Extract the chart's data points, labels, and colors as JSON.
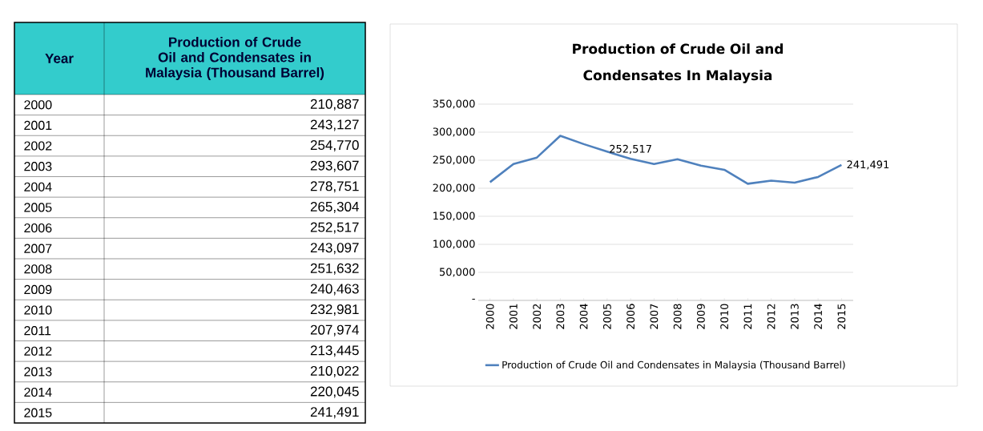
{
  "chart_data": {
    "type": "line",
    "title": "Production of Crude Oil and Condensates In Malaysia",
    "categories": [
      "2000",
      "2001",
      "2002",
      "2003",
      "2004",
      "2005",
      "2006",
      "2007",
      "2008",
      "2009",
      "2010",
      "2011",
      "2012",
      "2013",
      "2014",
      "2015"
    ],
    "series": [
      {
        "name": "Production of Crude Oil and Condensates in Malaysia (Thousand Barrel)",
        "color": "#4f81bd",
        "values": [
          210887,
          243127,
          254770,
          293607,
          278751,
          265304,
          252517,
          243097,
          251632,
          240463,
          232981,
          207974,
          213445,
          210022,
          220045,
          241491
        ]
      }
    ],
    "ylim": [
      0,
      350000
    ],
    "yticks": [
      {
        "value": 0,
        "label": "-"
      },
      {
        "value": 50000,
        "label": "50,000"
      },
      {
        "value": 100000,
        "label": "100,000"
      },
      {
        "value": 150000,
        "label": "150,000"
      },
      {
        "value": 200000,
        "label": "200,000"
      },
      {
        "value": 250000,
        "label": "250,000"
      },
      {
        "value": 300000,
        "label": "300,000"
      },
      {
        "value": 350000,
        "label": "350,000"
      }
    ],
    "grid": "y",
    "legend": "bottom",
    "marker": "none",
    "line_style": "solid",
    "annotations": [
      "Year",
      {
        "text": "252,517",
        "x": "2006",
        "y": 252517
      },
      {
        "text": "241,491",
        "x": "2015",
        "y": 241491
      },
      "210,887",
      "243,127",
      "254,770",
      "293,607",
      "278,751",
      "265,304",
      "252,517",
      "243,097",
      "251,632",
      "240,463",
      "232,981",
      "207,974",
      "213,445",
      "210,022",
      "220,045",
      "241,491"
    ]
  }
}
